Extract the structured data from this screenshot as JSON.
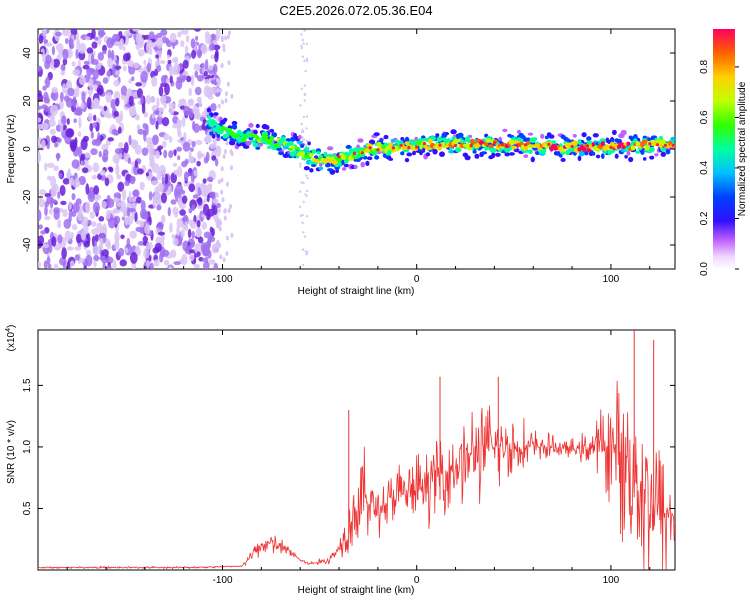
{
  "figure_title": "C2E5.2026.072.05.36.E04",
  "colors": {
    "snr_line": "#ee3333",
    "spectro_low": "#d9c4f5",
    "spectro_mid": "#6a1fd8"
  },
  "chart_data": [
    {
      "type": "heatmap",
      "title": "C2E5.2026.072.05.36.E04",
      "xlabel": "Height of straight line (km)",
      "ylabel": "Frequency (Hz)",
      "xlim": [
        -195,
        133
      ],
      "ylim": [
        -50,
        50
      ],
      "x_ticks": [
        -100,
        0,
        100
      ],
      "x_tick_labels": [
        "-100",
        "0",
        "100"
      ],
      "y_ticks": [
        -40,
        -20,
        0,
        20,
        40
      ],
      "y_tick_labels": [
        "-40",
        "-20",
        "0",
        "20",
        "40"
      ],
      "colorbar": {
        "label": "Normalized spectral amplitude",
        "range": [
          0.0,
          0.95
        ],
        "ticks": [
          0.0,
          0.2,
          0.4,
          0.6,
          0.8
        ],
        "tick_labels": [
          "0.0",
          "0.2",
          "0.4",
          "0.6",
          "0.8"
        ]
      },
      "noise_region_x": [
        -195,
        -102
      ],
      "signal_ridge": {
        "x": [
          -107,
          -95,
          -80,
          -65,
          -55,
          -45,
          -35,
          -25,
          -10,
          0,
          20,
          40,
          60,
          80,
          100,
          120,
          133
        ],
        "freq": [
          11,
          6,
          4,
          1,
          -3,
          -5,
          -3,
          0,
          1,
          1.5,
          2,
          2,
          1.5,
          1,
          1,
          1.5,
          2
        ],
        "amplitude": [
          0.45,
          0.55,
          0.55,
          0.6,
          0.65,
          0.7,
          0.6,
          0.7,
          0.75,
          0.75,
          0.8,
          0.85,
          0.85,
          0.9,
          0.9,
          0.8,
          0.75
        ]
      }
    },
    {
      "type": "line",
      "xlabel": "Height of straight line (km)",
      "ylabel": "SNR (10 * v/v)",
      "y_scale_label": "(x10",
      "y_scale_exponent": "4",
      "xlim": [
        -195,
        133
      ],
      "ylim": [
        0,
        1.95
      ],
      "x_ticks": [
        -100,
        0,
        100
      ],
      "x_tick_labels": [
        "-100",
        "0",
        "100"
      ],
      "y_ticks": [
        0.5,
        1.0,
        1.5
      ],
      "y_tick_labels": [
        "0.5",
        "1.0",
        "1.5"
      ],
      "series": [
        {
          "name": "SNR",
          "x": [
            -195,
            -120,
            -90,
            -85,
            -80,
            -75,
            -70,
            -65,
            -60,
            -55,
            -45,
            -40,
            -33,
            -30,
            -27,
            -25,
            -20,
            -10,
            0,
            10,
            20,
            30,
            40,
            50,
            60,
            70,
            80,
            90,
            100,
            110,
            120,
            133
          ],
          "y": [
            0.02,
            0.02,
            0.03,
            0.12,
            0.2,
            0.22,
            0.18,
            0.15,
            0.08,
            0.05,
            0.08,
            0.18,
            0.45,
            0.5,
            0.6,
            0.55,
            0.5,
            0.6,
            0.65,
            0.75,
            0.85,
            0.95,
            1.0,
            1.0,
            1.0,
            1.0,
            0.98,
            1.0,
            1.0,
            0.85,
            0.55,
            0.4
          ],
          "spread": [
            0.01,
            0.01,
            0.01,
            0.06,
            0.12,
            0.12,
            0.1,
            0.06,
            0.03,
            0.02,
            0.05,
            0.1,
            0.4,
            0.45,
            0.6,
            0.3,
            0.3,
            0.35,
            0.35,
            0.4,
            0.45,
            0.5,
            0.45,
            0.35,
            0.2,
            0.12,
            0.1,
            0.2,
            0.6,
            0.95,
            0.9,
            0.7
          ]
        }
      ],
      "peaks": [
        {
          "x": -35,
          "y": 1.3
        },
        {
          "x": 12,
          "y": 1.57
        },
        {
          "x": 42,
          "y": 1.57
        },
        {
          "x": 112,
          "y": 1.95
        },
        {
          "x": 122,
          "y": 1.87
        }
      ]
    }
  ]
}
